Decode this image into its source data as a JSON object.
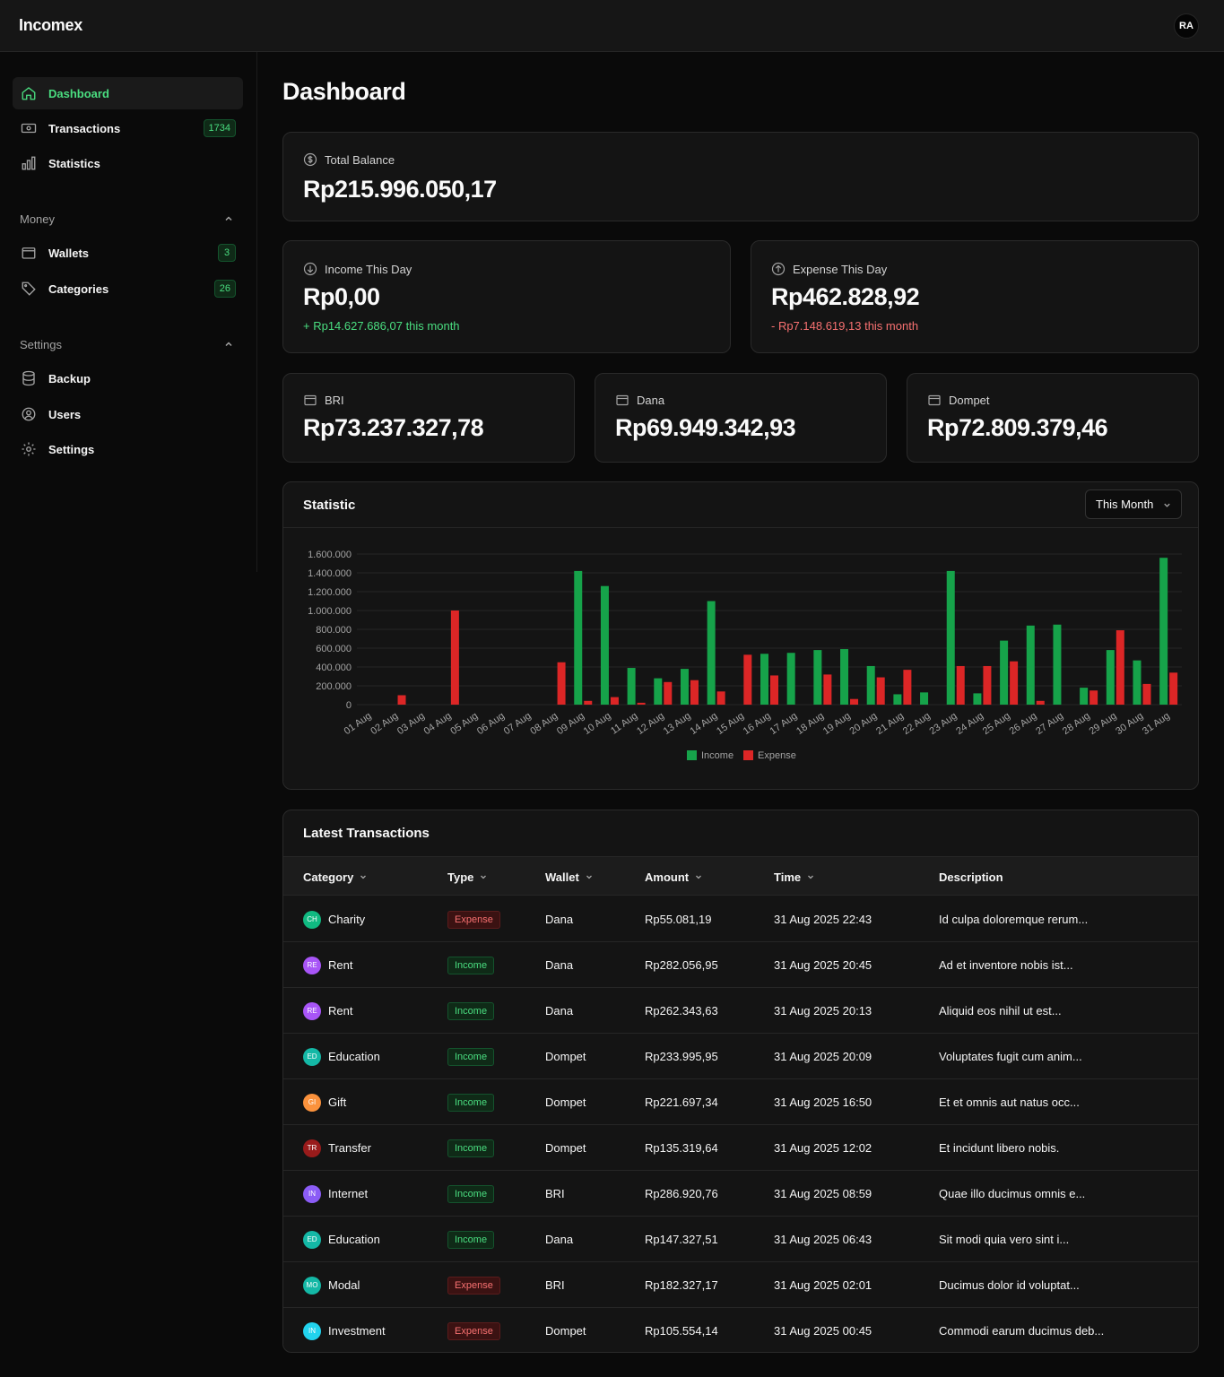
{
  "app": {
    "brand": "Incomex",
    "avatar_initials": "RA"
  },
  "sidebar": {
    "main": [
      {
        "label": "Dashboard",
        "icon": "home-icon",
        "active": true
      },
      {
        "label": "Transactions",
        "icon": "banknote-icon",
        "badge": "1734"
      },
      {
        "label": "Statistics",
        "icon": "bar-chart-icon"
      }
    ],
    "money_label": "Money",
    "money": [
      {
        "label": "Wallets",
        "icon": "wallet-icon",
        "badge": "3"
      },
      {
        "label": "Categories",
        "icon": "tag-icon",
        "badge": "26"
      }
    ],
    "settings_label": "Settings",
    "settings": [
      {
        "label": "Backup",
        "icon": "database-icon"
      },
      {
        "label": "Users",
        "icon": "user-icon"
      },
      {
        "label": "Settings",
        "icon": "gear-icon"
      }
    ]
  },
  "page": {
    "title": "Dashboard"
  },
  "total": {
    "label": "Total Balance",
    "value": "Rp215.996.050,17"
  },
  "income_day": {
    "label": "Income This Day",
    "value": "Rp0,00",
    "sub": "+ Rp14.627.686,07 this month"
  },
  "expense_day": {
    "label": "Expense This Day",
    "value": "Rp462.828,92",
    "sub": "- Rp7.148.619,13 this month"
  },
  "wallets": [
    {
      "name": "BRI",
      "value": "Rp73.237.327,78"
    },
    {
      "name": "Dana",
      "value": "Rp69.949.342,93"
    },
    {
      "name": "Dompet",
      "value": "Rp72.809.379,46"
    }
  ],
  "statistic": {
    "title": "Statistic",
    "period": "This Month"
  },
  "chart_data": {
    "type": "bar",
    "categories": [
      "01 Aug",
      "02 Aug",
      "03 Aug",
      "04 Aug",
      "05 Aug",
      "06 Aug",
      "07 Aug",
      "08 Aug",
      "09 Aug",
      "10 Aug",
      "11 Aug",
      "12 Aug",
      "13 Aug",
      "14 Aug",
      "15 Aug",
      "16 Aug",
      "17 Aug",
      "18 Aug",
      "19 Aug",
      "20 Aug",
      "21 Aug",
      "22 Aug",
      "23 Aug",
      "24 Aug",
      "25 Aug",
      "26 Aug",
      "27 Aug",
      "28 Aug",
      "29 Aug",
      "30 Aug",
      "31 Aug"
    ],
    "series": [
      {
        "name": "Income",
        "color": "#16a34a",
        "values": [
          0,
          0,
          0,
          0,
          0,
          0,
          0,
          0,
          1420000,
          1260000,
          390000,
          280000,
          380000,
          1100000,
          0,
          540000,
          550000,
          580000,
          590000,
          410000,
          110000,
          130000,
          1420000,
          120000,
          680000,
          840000,
          850000,
          180000,
          580000,
          470000,
          1560000
        ]
      },
      {
        "name": "Expense",
        "color": "#dc2626",
        "values": [
          0,
          100000,
          0,
          1000000,
          0,
          0,
          0,
          450000,
          40000,
          80000,
          20000,
          240000,
          260000,
          140000,
          530000,
          310000,
          0,
          320000,
          60000,
          290000,
          370000,
          0,
          410000,
          410000,
          460000,
          40000,
          0,
          150000,
          790000,
          220000,
          340000
        ]
      }
    ],
    "ylim": [
      0,
      1600000
    ],
    "yticks": [
      "1.600.000",
      "1.400.000",
      "1.200.000",
      "1.000.000",
      "800.000",
      "600.000",
      "400.000",
      "200.000",
      "0"
    ],
    "grid": true,
    "legend": "bottom-center"
  },
  "transactions": {
    "title": "Latest Transactions",
    "columns": [
      "Category",
      "Type",
      "Wallet",
      "Amount",
      "Time",
      "Description"
    ],
    "rows": [
      {
        "initials": "CH",
        "color": "#10b981",
        "category": "Charity",
        "type": "Expense",
        "wallet": "Dana",
        "amount": "Rp55.081,19",
        "time": "31 Aug 2025 22:43",
        "description": "Id culpa doloremque rerum..."
      },
      {
        "initials": "RE",
        "color": "#a855f7",
        "category": "Rent",
        "type": "Income",
        "wallet": "Dana",
        "amount": "Rp282.056,95",
        "time": "31 Aug 2025 20:45",
        "description": "Ad et inventore nobis ist..."
      },
      {
        "initials": "RE",
        "color": "#a855f7",
        "category": "Rent",
        "type": "Income",
        "wallet": "Dana",
        "amount": "Rp262.343,63",
        "time": "31 Aug 2025 20:13",
        "description": "Aliquid eos nihil ut est..."
      },
      {
        "initials": "ED",
        "color": "#14b8a6",
        "category": "Education",
        "type": "Income",
        "wallet": "Dompet",
        "amount": "Rp233.995,95",
        "time": "31 Aug 2025 20:09",
        "description": "Voluptates fugit cum anim..."
      },
      {
        "initials": "GI",
        "color": "#fb923c",
        "category": "Gift",
        "type": "Income",
        "wallet": "Dompet",
        "amount": "Rp221.697,34",
        "time": "31 Aug 2025 16:50",
        "description": "Et et omnis aut natus occ..."
      },
      {
        "initials": "TR",
        "color": "#991b1b",
        "category": "Transfer",
        "type": "Income",
        "wallet": "Dompet",
        "amount": "Rp135.319,64",
        "time": "31 Aug 2025 12:02",
        "description": "Et incidunt libero nobis."
      },
      {
        "initials": "IN",
        "color": "#8b5cf6",
        "category": "Internet",
        "type": "Income",
        "wallet": "BRI",
        "amount": "Rp286.920,76",
        "time": "31 Aug 2025 08:59",
        "description": "Quae illo ducimus omnis e..."
      },
      {
        "initials": "ED",
        "color": "#14b8a6",
        "category": "Education",
        "type": "Income",
        "wallet": "Dana",
        "amount": "Rp147.327,51",
        "time": "31 Aug 2025 06:43",
        "description": "Sit modi quia vero sint i..."
      },
      {
        "initials": "MO",
        "color": "#14b8a6",
        "category": "Modal",
        "type": "Expense",
        "wallet": "BRI",
        "amount": "Rp182.327,17",
        "time": "31 Aug 2025 02:01",
        "description": "Ducimus dolor id voluptat..."
      },
      {
        "initials": "IN",
        "color": "#22d3ee",
        "category": "Investment",
        "type": "Expense",
        "wallet": "Dompet",
        "amount": "Rp105.554,14",
        "time": "31 Aug 2025 00:45",
        "description": "Commodi earum ducimus deb..."
      }
    ]
  }
}
